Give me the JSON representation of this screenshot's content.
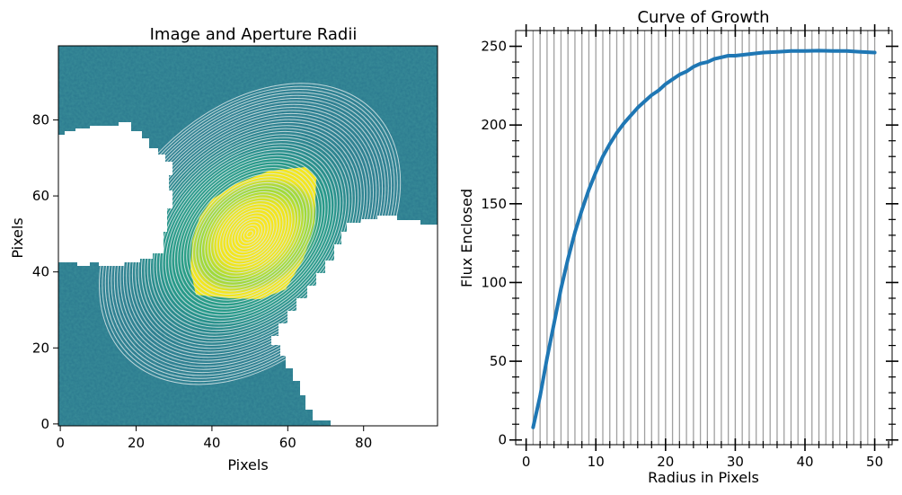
{
  "chart_data": [
    {
      "type": "heatmap",
      "title": "Image and Aperture Radii",
      "xlabel": "Pixels",
      "ylabel": "Pixels",
      "xlim": [
        -0.5,
        99.5
      ],
      "ylim": [
        -0.5,
        99.5
      ],
      "xticks": [
        "0",
        "20",
        "40",
        "60",
        "80"
      ],
      "yticks": [
        "0",
        "20",
        "40",
        "60",
        "80"
      ],
      "xtick_values": [
        0,
        20,
        40,
        60,
        80
      ],
      "ytick_values": [
        0,
        20,
        40,
        60,
        80
      ],
      "colormap": "viridis",
      "masked_regions": "white",
      "aperture_center": [
        50,
        50
      ],
      "aperture_radii": [
        1,
        50
      ],
      "aperture_count": 50,
      "aperture_ellipticity_ratio": 0.7,
      "aperture_angle_deg": 45,
      "colors": {
        "background": "#2a788e",
        "mid": "#22a884",
        "core": "#fde725",
        "aperture": "#d8e6e8",
        "mask": "#ffffff"
      }
    },
    {
      "type": "line",
      "title": "Curve of Growth",
      "xlabel": "Radius in Pixels",
      "ylabel": "Flux Enclosed",
      "xlim": [
        -1.5,
        52.5
      ],
      "ylim": [
        -3,
        260
      ],
      "xticks": [
        "0",
        "10",
        "20",
        "30",
        "40",
        "50"
      ],
      "yticks": [
        "0",
        "50",
        "100",
        "150",
        "200",
        "250"
      ],
      "xtick_values": [
        0,
        10,
        20,
        30,
        40,
        50
      ],
      "ytick_values": [
        0,
        50,
        100,
        150,
        200,
        250
      ],
      "vertical_lines": [
        1,
        2,
        3,
        4,
        5,
        6,
        7,
        8,
        9,
        10,
        11,
        12,
        13,
        14,
        15,
        16,
        17,
        18,
        19,
        20,
        21,
        22,
        23,
        24,
        25,
        26,
        27,
        28,
        29,
        30,
        31,
        32,
        33,
        34,
        35,
        36,
        37,
        38,
        39,
        40,
        41,
        42,
        43,
        44,
        45,
        46,
        47,
        48,
        49,
        50
      ],
      "series": [
        {
          "color": "#1f77b4",
          "x": [
            1,
            2,
            3,
            4,
            5,
            6,
            7,
            8,
            9,
            10,
            11,
            12,
            13,
            14,
            15,
            16,
            17,
            18,
            19,
            20,
            21,
            22,
            23,
            24,
            25,
            26,
            27,
            28,
            29,
            30,
            32,
            34,
            36,
            38,
            40,
            42,
            44,
            46,
            48,
            50
          ],
          "y": [
            8,
            28,
            52,
            74,
            96,
            115,
            132,
            146,
            159,
            170,
            180,
            188,
            195,
            201,
            206,
            211,
            215,
            219,
            222,
            226,
            229,
            232,
            234,
            237,
            239,
            240,
            242,
            243,
            244,
            244,
            245,
            246,
            246.5,
            247,
            247,
            247.2,
            247,
            247,
            246.5,
            246
          ]
        }
      ],
      "colors": {
        "vline": "#a0a0a0"
      }
    }
  ]
}
